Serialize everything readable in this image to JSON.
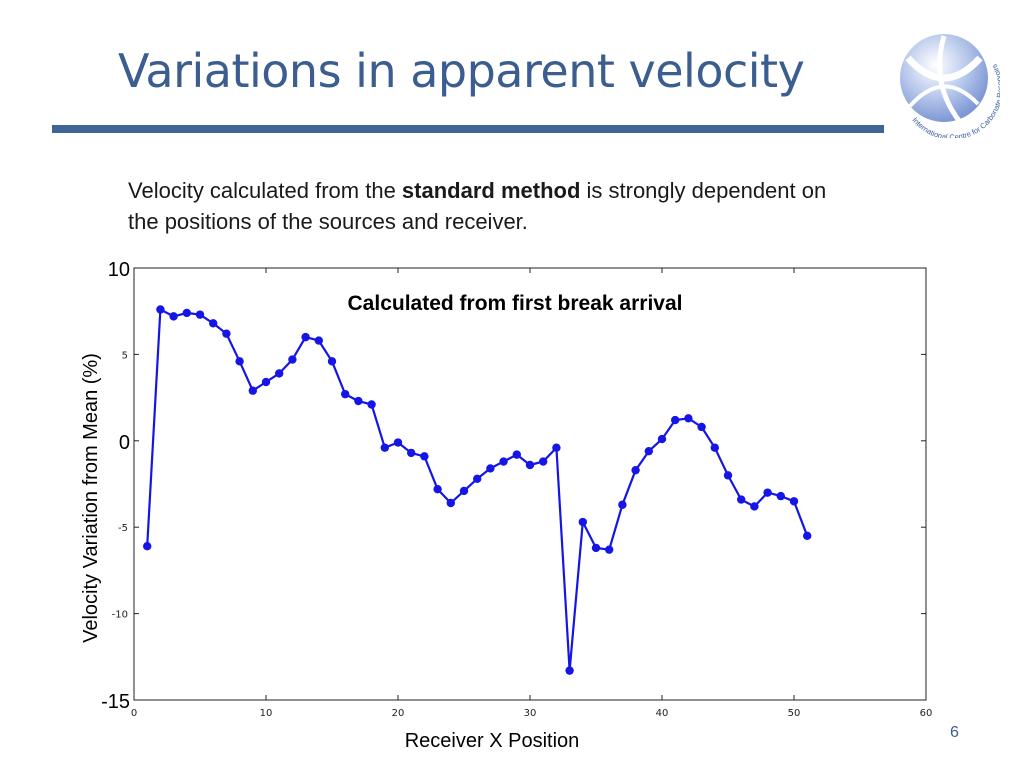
{
  "slide": {
    "title": "Variations in apparent velocity",
    "intro_pre": "Velocity calculated from the ",
    "intro_bold": "standard method",
    "intro_post": " is strongly dependent on the positions of the sources and receiver.",
    "page_number": "6",
    "accent_color": "#3e6596",
    "logo_text": "International Centre for Carbonate Reservoirs"
  },
  "chart_data": {
    "type": "line",
    "title": "Calculated from first break arrival",
    "xlabel": "Receiver X Position",
    "ylabel": "Velocity Variation from Mean (%)",
    "xlim": [
      0,
      60
    ],
    "ylim": [
      -15,
      10
    ],
    "x_ticks": [
      "0",
      "10",
      "20",
      "30",
      "40",
      "50",
      "60"
    ],
    "y_ticks_large": [
      {
        "value": 10,
        "label": "10"
      },
      {
        "value": 0,
        "label": "0"
      },
      {
        "value": -15,
        "label": "-15"
      }
    ],
    "y_ticks_small": [
      {
        "value": 5,
        "label": "5"
      },
      {
        "value": -5,
        "label": "-5"
      },
      {
        "value": -10,
        "label": "-10"
      }
    ],
    "grid": false,
    "line_color": "#1515e6",
    "series": [
      {
        "x": [
          1,
          2,
          3,
          4,
          5,
          6,
          7,
          8,
          9,
          10,
          11,
          12,
          13,
          14,
          15,
          16,
          17,
          18,
          19,
          20,
          21,
          22,
          23,
          24,
          25,
          26,
          27,
          28,
          29,
          30,
          31,
          32,
          33,
          34,
          35,
          36,
          37,
          38,
          39,
          40,
          41,
          42,
          43,
          44,
          45,
          46,
          47,
          48,
          49,
          50,
          51
        ],
        "values": [
          -6.1,
          7.6,
          7.2,
          7.4,
          7.3,
          6.8,
          6.2,
          4.6,
          2.9,
          3.4,
          3.9,
          4.7,
          6.0,
          5.8,
          4.6,
          2.7,
          2.3,
          2.1,
          -0.4,
          -0.1,
          -0.7,
          -0.9,
          -2.8,
          -3.6,
          -2.9,
          -2.2,
          -1.6,
          -1.2,
          -0.8,
          -1.4,
          -1.2,
          -0.4,
          -13.3,
          -4.7,
          -6.2,
          -6.3,
          -3.7,
          -1.7,
          -0.6,
          0.1,
          1.2,
          1.3,
          0.8,
          -0.4,
          -2.0,
          -3.4,
          -3.8,
          -3.0,
          -3.2,
          -3.5,
          -5.5
        ]
      }
    ]
  }
}
